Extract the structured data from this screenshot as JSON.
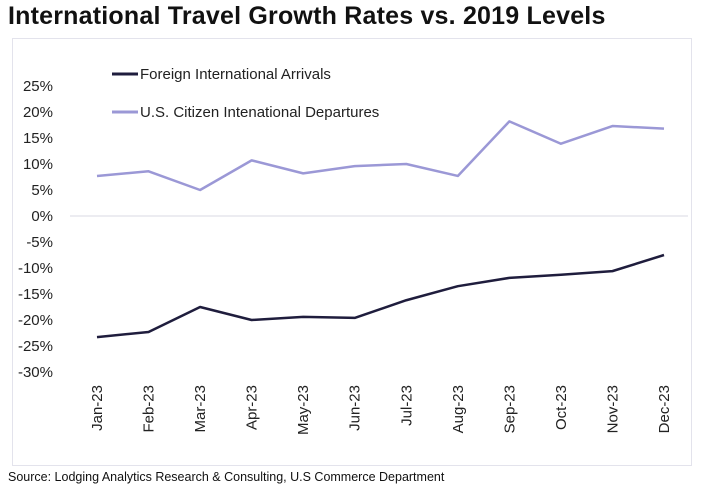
{
  "chart_data": {
    "type": "line",
    "title": "International Travel Growth Rates vs. 2019 Levels",
    "xlabel": "",
    "ylabel": "",
    "categories": [
      "Jan-23",
      "Feb-23",
      "Mar-23",
      "Apr-23",
      "May-23",
      "Jun-23",
      "Jul-23",
      "Aug-23",
      "Sep-23",
      "Oct-23",
      "Nov-23",
      "Dec-23"
    ],
    "ylim": [
      -30,
      25
    ],
    "yticks": [
      25,
      20,
      15,
      10,
      5,
      0,
      -5,
      -10,
      -15,
      -20,
      -25,
      -30
    ],
    "ytick_labels": [
      "25%",
      "20%",
      "15%",
      "10%",
      "5%",
      "0%",
      "-5%",
      "-10%",
      "-15%",
      "-20%",
      "-25%",
      "-30%"
    ],
    "grid": false,
    "legend_position": "top-left",
    "series": [
      {
        "name": "Foreign International Arrivals",
        "color": "#1f1d3d",
        "values": [
          -23.3,
          -22.3,
          -17.5,
          -20.0,
          -19.4,
          -19.6,
          -16.2,
          -13.5,
          -11.9,
          -11.3,
          -10.6,
          -7.5
        ]
      },
      {
        "name": "U.S. Citizen Intenational Departures",
        "color": "#9b98d6",
        "values": [
          7.7,
          8.6,
          5.0,
          10.7,
          8.2,
          9.6,
          10.0,
          7.7,
          18.2,
          13.9,
          17.3,
          16.8
        ]
      }
    ]
  },
  "source": "Source: Lodging Analytics Research & Consulting, U.S Commerce Department"
}
